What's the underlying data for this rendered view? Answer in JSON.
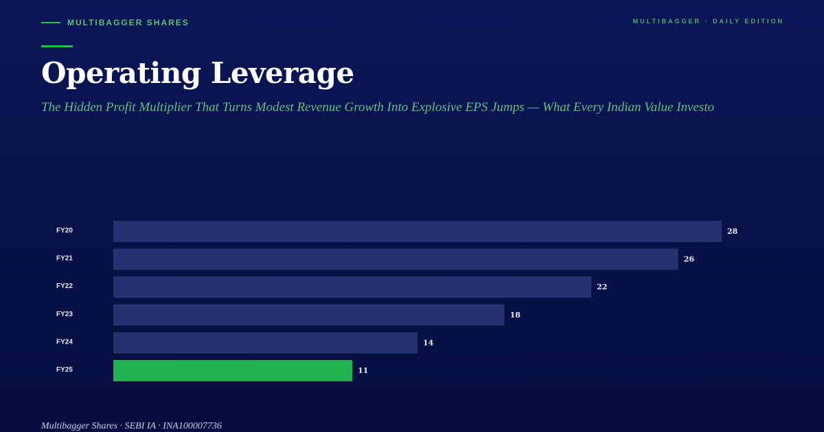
{
  "header": {
    "brand": "MULTIBAGGER SHARES",
    "edition": "MULTIBAGGER · DAILY EDITION"
  },
  "article": {
    "title": "Operating Leverage",
    "subtitle": "The Hidden Profit Multiplier That Turns Modest Revenue Growth Into Explosive EPS Jumps — What Every Indian Value Investo"
  },
  "chart_data": {
    "type": "bar",
    "orientation": "horizontal",
    "categories": [
      "FY20",
      "FY21",
      "FY22",
      "FY23",
      "FY24",
      "FY25"
    ],
    "values": [
      28,
      26,
      22,
      18,
      14,
      11
    ],
    "xlim": [
      0,
      28
    ],
    "grid": false,
    "legend": "none",
    "colors": {
      "bar": "#28316f",
      "highlight": "#22b24f",
      "category_label": "#e8ebf7",
      "value_label": "#e8ebf7"
    },
    "highlight_category": "FY25"
  },
  "footer": {
    "credit": "Multibagger Shares · SEBI IA · INA100007736"
  }
}
